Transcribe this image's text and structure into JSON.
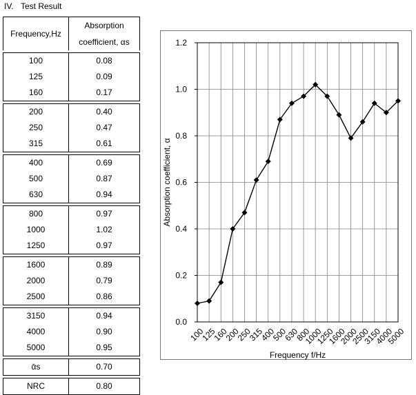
{
  "heading": {
    "number": "IV.",
    "title": "Test Result"
  },
  "table": {
    "header": {
      "frequency": "Frequency,Hz",
      "absorption_line1": "Absorption",
      "absorption_line2": "coefficient, αs"
    },
    "groups": [
      [
        {
          "f": "100",
          "a": "0.08"
        },
        {
          "f": "125",
          "a": "0.09"
        },
        {
          "f": "160",
          "a": "0.17"
        }
      ],
      [
        {
          "f": "200",
          "a": "0.40"
        },
        {
          "f": "250",
          "a": "0.47"
        },
        {
          "f": "315",
          "a": "0.61"
        }
      ],
      [
        {
          "f": "400",
          "a": "0.69"
        },
        {
          "f": "500",
          "a": "0.87"
        },
        {
          "f": "630",
          "a": "0.94"
        }
      ],
      [
        {
          "f": "800",
          "a": "0.97"
        },
        {
          "f": "1000",
          "a": "1.02"
        },
        {
          "f": "1250",
          "a": "0.97"
        }
      ],
      [
        {
          "f": "1600",
          "a": "0.89"
        },
        {
          "f": "2000",
          "a": "0.79"
        },
        {
          "f": "2500",
          "a": "0.86"
        }
      ],
      [
        {
          "f": "3150",
          "a": "0.94"
        },
        {
          "f": "4000",
          "a": "0.90"
        },
        {
          "f": "5000",
          "a": "0.95"
        }
      ]
    ],
    "mean": {
      "label": "ᾱs",
      "value": "0.70"
    },
    "nrc": {
      "label": "NRC",
      "value": "0.80"
    }
  },
  "chart_data": {
    "type": "line",
    "xlabel": "Frequency f/Hz",
    "ylabel": "Absorption coefficient, α",
    "ylim": [
      0,
      1.2
    ],
    "yticks": [
      "0.0",
      "0.2",
      "0.4",
      "0.6",
      "0.8",
      "1.0",
      "1.2"
    ],
    "grid": true,
    "categories": [
      "100",
      "125",
      "160",
      "200",
      "250",
      "315",
      "400",
      "500",
      "630",
      "800",
      "1000",
      "1250",
      "1600",
      "2000",
      "2500",
      "3150",
      "4000",
      "5000"
    ],
    "values": [
      0.08,
      0.09,
      0.17,
      0.4,
      0.47,
      0.61,
      0.69,
      0.87,
      0.94,
      0.97,
      1.02,
      0.97,
      0.89,
      0.79,
      0.86,
      0.94,
      0.9,
      0.95
    ]
  }
}
